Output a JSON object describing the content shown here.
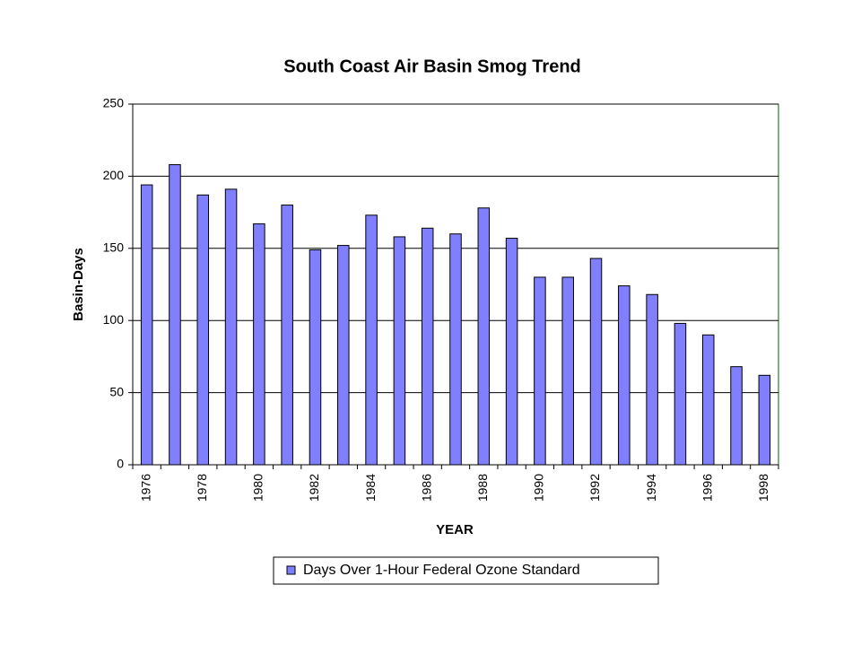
{
  "chart_data": {
    "type": "bar",
    "title": "South Coast Air Basin Smog Trend",
    "x_label": "YEAR",
    "y_label": "Basin-Days",
    "categories": [
      "1976",
      null,
      "1978",
      null,
      "1980",
      null,
      "1982",
      null,
      "1984",
      null,
      "1986",
      null,
      "1988",
      null,
      "1990",
      null,
      "1992",
      null,
      "1994",
      null,
      "1996",
      null,
      "1998"
    ],
    "series": [
      {
        "name": "Days Over 1-Hour Federal  Ozone Standard",
        "color": "#8080ff",
        "values": [
          194,
          208,
          187,
          191,
          167,
          180,
          149,
          152,
          173,
          158,
          164,
          160,
          178,
          157,
          130,
          130,
          143,
          124,
          118,
          98,
          90,
          68,
          62
        ]
      }
    ],
    "ylim": [
      0,
      250
    ],
    "yticks": [
      0,
      50,
      100,
      150,
      200,
      250
    ],
    "grid": true,
    "legend": "bottom"
  }
}
